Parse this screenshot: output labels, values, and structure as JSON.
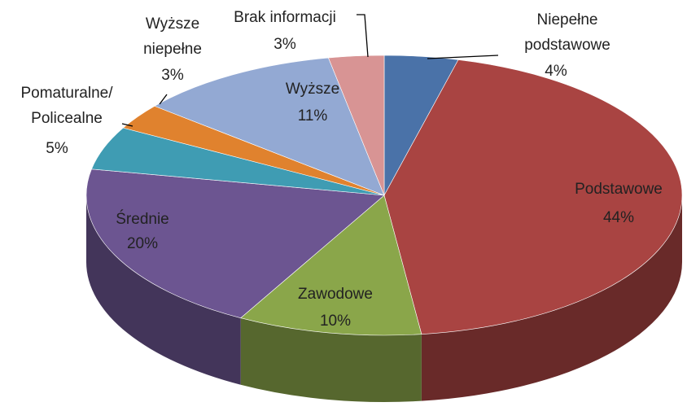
{
  "chart_data": {
    "type": "pie3d",
    "categories": [
      "Niepełne\npodstawowe",
      "Podstawowe",
      "Zawodowe",
      "Średnie",
      "Pomaturalne/\nPolicealne",
      "Wyższe\nniepełne",
      "Wyższe",
      "Brak informacji"
    ],
    "values": [
      4,
      44,
      10,
      20,
      5,
      3,
      11,
      3
    ],
    "value_labels": [
      "4%",
      "44%",
      "10%",
      "20%",
      "5%",
      "3%",
      "11%",
      "3%"
    ],
    "colors": [
      "#4a72a8",
      "#a94442",
      "#8aa64a",
      "#6c5591",
      "#3f9cb3",
      "#e0822e",
      "#93a9d3",
      "#d89494"
    ]
  }
}
